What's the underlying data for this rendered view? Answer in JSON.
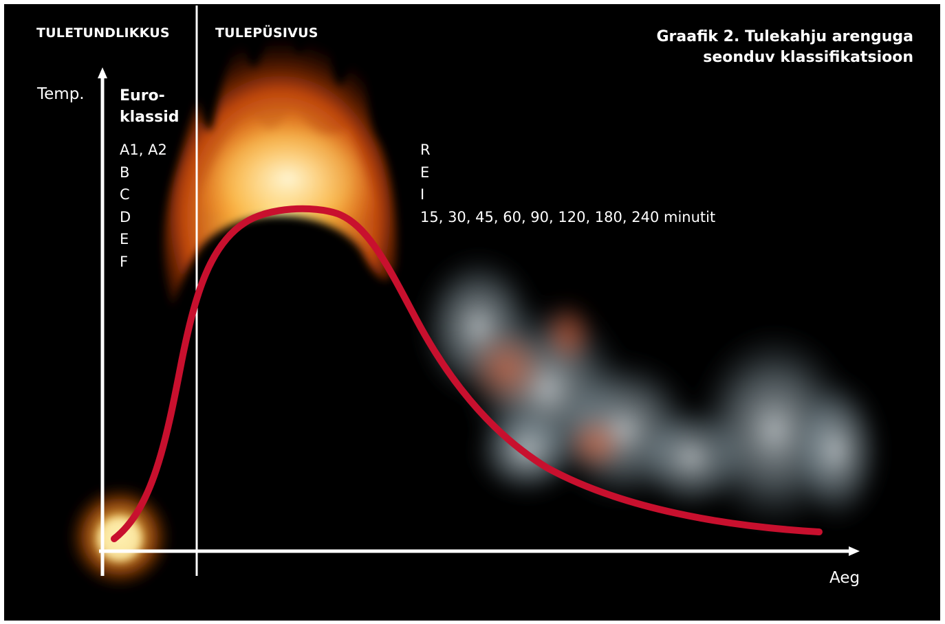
{
  "header": {
    "left_section": "TULETUNDLIKKUS",
    "right_section": "TULEPÜSIVUS"
  },
  "title": {
    "line1": "Graafik 2. Tulekahju arenguga",
    "line2": "seonduv klassifikatsioon"
  },
  "axes": {
    "y_label": "Temp.",
    "x_label": "Aeg"
  },
  "euroclasses": {
    "heading_line1": "Euro-",
    "heading_line2": "klassid",
    "classes": [
      "A1, A2",
      "B",
      "C",
      "D",
      "E",
      "F"
    ]
  },
  "resistance": {
    "criteria": [
      "R",
      "E",
      "I"
    ],
    "durations": "15, 30, 45, 60, 90, 120, 180, 240 minutit"
  },
  "colors": {
    "background": "#000000",
    "curve": "#c8102e",
    "text": "#ffffff",
    "flame": "#ff8c1a",
    "smoke": "#c9d6dc"
  }
}
